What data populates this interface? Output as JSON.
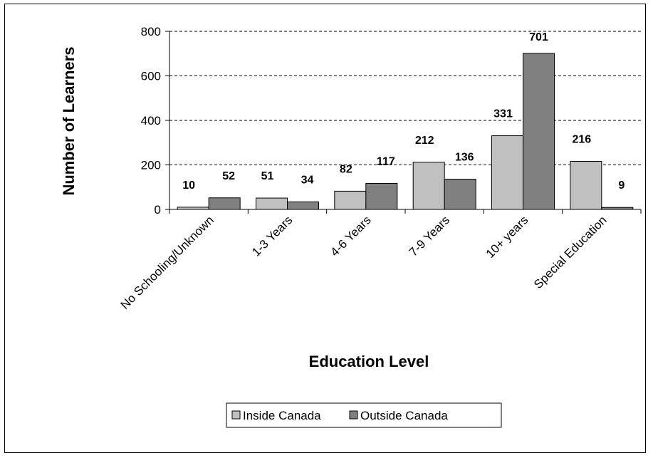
{
  "chart_data": {
    "type": "bar",
    "title": "",
    "xlabel": "Education Level",
    "ylabel": "Number of Learners",
    "ylim": [
      0,
      800
    ],
    "yticks": [
      0,
      200,
      400,
      600,
      800
    ],
    "grid": "horizontal dashed",
    "legend_position": "bottom",
    "categories": [
      "No Schooling/Unknown",
      "1-3 Years",
      "4-6 Years",
      "7-9 Years",
      "10+ years",
      "Special Education"
    ],
    "series": [
      {
        "name": "Inside Canada",
        "values": [
          10,
          51,
          82,
          212,
          331,
          216
        ],
        "color": "#c0c0c0"
      },
      {
        "name": "Outside Canada",
        "values": [
          52,
          34,
          117,
          136,
          701,
          9
        ],
        "color": "#808080"
      }
    ]
  }
}
